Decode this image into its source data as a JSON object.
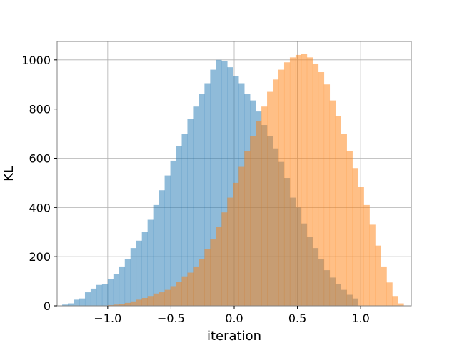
{
  "chart_data": {
    "type": "histogram",
    "xlabel": "iteration",
    "ylabel": "KL",
    "xlim": [
      -1.4,
      1.4
    ],
    "ylim": [
      0,
      1075
    ],
    "grid": true,
    "x_ticks": [
      -1.0,
      -0.5,
      0.0,
      0.5,
      1.0
    ],
    "x_tick_labels": [
      "−1.0",
      "−0.5",
      "0.0",
      "0.5",
      "1.0"
    ],
    "y_ticks": [
      0,
      200,
      400,
      600,
      800,
      1000
    ],
    "y_tick_labels": [
      "0",
      "200",
      "400",
      "600",
      "800",
      "1000"
    ],
    "series": [
      {
        "color": "#1f77b4",
        "alpha": 0.5,
        "bins": [
          [
            -1.36,
            -1.315,
            5
          ],
          [
            -1.315,
            -1.27,
            10
          ],
          [
            -1.27,
            -1.225,
            25
          ],
          [
            -1.225,
            -1.18,
            30
          ],
          [
            -1.18,
            -1.135,
            55
          ],
          [
            -1.135,
            -1.09,
            70
          ],
          [
            -1.09,
            -1.045,
            85
          ],
          [
            -1.045,
            -1.0,
            90
          ],
          [
            -1.0,
            -0.955,
            110
          ],
          [
            -0.955,
            -0.91,
            130
          ],
          [
            -0.91,
            -0.865,
            160
          ],
          [
            -0.865,
            -0.82,
            190
          ],
          [
            -0.82,
            -0.775,
            235
          ],
          [
            -0.775,
            -0.73,
            265
          ],
          [
            -0.73,
            -0.685,
            300
          ],
          [
            -0.685,
            -0.64,
            350
          ],
          [
            -0.64,
            -0.595,
            410
          ],
          [
            -0.595,
            -0.55,
            470
          ],
          [
            -0.55,
            -0.505,
            530
          ],
          [
            -0.505,
            -0.46,
            590
          ],
          [
            -0.46,
            -0.415,
            650
          ],
          [
            -0.415,
            -0.37,
            700
          ],
          [
            -0.37,
            -0.325,
            760
          ],
          [
            -0.325,
            -0.28,
            810
          ],
          [
            -0.28,
            -0.235,
            860
          ],
          [
            -0.235,
            -0.19,
            905
          ],
          [
            -0.19,
            -0.145,
            960
          ],
          [
            -0.145,
            -0.1,
            1000
          ],
          [
            -0.1,
            -0.055,
            995
          ],
          [
            -0.055,
            -0.01,
            970
          ],
          [
            -0.01,
            0.035,
            935
          ],
          [
            0.035,
            0.08,
            905
          ],
          [
            0.08,
            0.125,
            860
          ],
          [
            0.125,
            0.17,
            835
          ],
          [
            0.17,
            0.215,
            790
          ],
          [
            0.215,
            0.26,
            735
          ],
          [
            0.26,
            0.305,
            690
          ],
          [
            0.305,
            0.35,
            640
          ],
          [
            0.35,
            0.395,
            585
          ],
          [
            0.395,
            0.44,
            520
          ],
          [
            0.44,
            0.485,
            440
          ],
          [
            0.485,
            0.53,
            400
          ],
          [
            0.53,
            0.575,
            335
          ],
          [
            0.575,
            0.62,
            280
          ],
          [
            0.62,
            0.665,
            235
          ],
          [
            0.665,
            0.71,
            190
          ],
          [
            0.71,
            0.755,
            145
          ],
          [
            0.755,
            0.8,
            115
          ],
          [
            0.8,
            0.845,
            90
          ],
          [
            0.845,
            0.89,
            65
          ],
          [
            0.89,
            0.935,
            45
          ],
          [
            0.935,
            0.98,
            30
          ]
        ]
      },
      {
        "color": "#ff7f0e",
        "alpha": 0.5,
        "bins": [
          [
            -1.0,
            -0.955,
            3
          ],
          [
            -0.955,
            -0.91,
            5
          ],
          [
            -0.91,
            -0.865,
            8
          ],
          [
            -0.865,
            -0.82,
            12
          ],
          [
            -0.82,
            -0.775,
            18
          ],
          [
            -0.775,
            -0.73,
            25
          ],
          [
            -0.73,
            -0.685,
            32
          ],
          [
            -0.685,
            -0.64,
            40
          ],
          [
            -0.64,
            -0.595,
            50
          ],
          [
            -0.595,
            -0.55,
            55
          ],
          [
            -0.55,
            -0.505,
            65
          ],
          [
            -0.505,
            -0.46,
            80
          ],
          [
            -0.46,
            -0.415,
            98
          ],
          [
            -0.415,
            -0.37,
            120
          ],
          [
            -0.37,
            -0.325,
            135
          ],
          [
            -0.325,
            -0.28,
            160
          ],
          [
            -0.28,
            -0.235,
            190
          ],
          [
            -0.235,
            -0.19,
            230
          ],
          [
            -0.19,
            -0.145,
            270
          ],
          [
            -0.145,
            -0.1,
            320
          ],
          [
            -0.1,
            -0.055,
            380
          ],
          [
            -0.055,
            -0.01,
            440
          ],
          [
            -0.01,
            0.035,
            500
          ],
          [
            0.035,
            0.08,
            565
          ],
          [
            0.08,
            0.125,
            630
          ],
          [
            0.125,
            0.17,
            690
          ],
          [
            0.17,
            0.215,
            750
          ],
          [
            0.215,
            0.26,
            810
          ],
          [
            0.26,
            0.305,
            870
          ],
          [
            0.305,
            0.35,
            920
          ],
          [
            0.35,
            0.395,
            960
          ],
          [
            0.395,
            0.44,
            990
          ],
          [
            0.44,
            0.485,
            1010
          ],
          [
            0.485,
            0.53,
            1020
          ],
          [
            0.53,
            0.575,
            1025
          ],
          [
            0.575,
            0.62,
            1010
          ],
          [
            0.62,
            0.665,
            985
          ],
          [
            0.665,
            0.71,
            950
          ],
          [
            0.71,
            0.755,
            900
          ],
          [
            0.755,
            0.8,
            835
          ],
          [
            0.8,
            0.845,
            770
          ],
          [
            0.845,
            0.89,
            700
          ],
          [
            0.89,
            0.935,
            630
          ],
          [
            0.935,
            0.98,
            560
          ],
          [
            0.98,
            1.025,
            485
          ],
          [
            1.025,
            1.07,
            410
          ],
          [
            1.07,
            1.115,
            330
          ],
          [
            1.115,
            1.16,
            245
          ],
          [
            1.16,
            1.205,
            160
          ],
          [
            1.205,
            1.25,
            95
          ],
          [
            1.25,
            1.295,
            40
          ],
          [
            1.295,
            1.34,
            10
          ]
        ]
      }
    ]
  }
}
